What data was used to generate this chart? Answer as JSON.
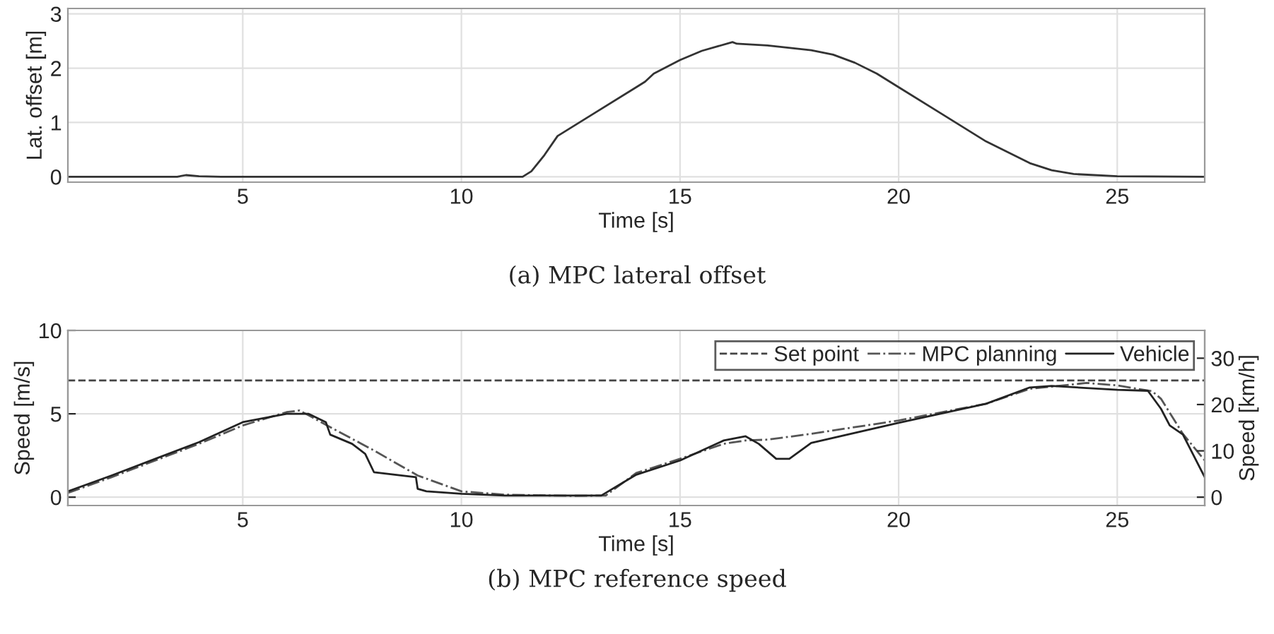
{
  "chart_data": [
    {
      "type": "line",
      "xlabel": "Time [s]",
      "ylabel": "Lat. offset [m]",
      "annotations": [
        "(a) MPC lateral offset"
      ],
      "xlim": [
        1,
        27
      ],
      "ylim": [
        -0.1,
        3.1
      ],
      "xticks": [
        5,
        10,
        15,
        20,
        25
      ],
      "yticks": [
        0,
        1,
        2,
        3
      ],
      "grid": true,
      "legend": false,
      "marker": "none",
      "series": [
        {
          "color": "#333333",
          "line_style": "solid",
          "x": [
            1,
            3.5,
            3.7,
            4.0,
            4.5,
            11.4,
            11.6,
            11.9,
            12.2,
            13,
            14,
            14.2,
            14.4,
            15,
            15.5,
            16.2,
            16.3,
            17,
            18,
            18.5,
            19,
            19.5,
            20,
            21,
            22,
            23,
            23.5,
            24,
            25,
            27
          ],
          "values": [
            0,
            0,
            0.03,
            0.01,
            0,
            0,
            0.1,
            0.4,
            0.75,
            1.15,
            1.65,
            1.75,
            1.9,
            2.15,
            2.32,
            2.48,
            2.45,
            2.42,
            2.33,
            2.25,
            2.1,
            1.9,
            1.65,
            1.15,
            0.65,
            0.25,
            0.12,
            0.05,
            0.01,
            0
          ]
        }
      ]
    },
    {
      "type": "line",
      "xlabel": "Time [s]",
      "ylabel": "Speed [m/s]",
      "y2label": "Speed [km/h]",
      "annotations": [
        "(b) MPC reference speed"
      ],
      "xlim": [
        1,
        27
      ],
      "ylim": [
        -0.5,
        10
      ],
      "y2lim": [
        -1.8,
        36
      ],
      "xticks": [
        5,
        10,
        15,
        20,
        25
      ],
      "yticks": [
        0,
        5,
        10
      ],
      "y2ticks": [
        0,
        10,
        20,
        30
      ],
      "grid": true,
      "legend": "top right",
      "marker": "none",
      "series": [
        {
          "name": "Set point",
          "color": "#444444",
          "line_style": "dashed",
          "x": [
            1,
            27
          ],
          "values": [
            7,
            7
          ]
        },
        {
          "name": "MPC planning",
          "color": "#555555",
          "line_style": "dashdot",
          "x": [
            1,
            2,
            3,
            4,
            5,
            6,
            6.3,
            7,
            8,
            9,
            10,
            11,
            12.5,
            13.3,
            14,
            15,
            16,
            16.5,
            17,
            18,
            20,
            22,
            23,
            24.3,
            25,
            25.8,
            26,
            26.5,
            27
          ],
          "values": [
            0.25,
            1.2,
            2.2,
            3.2,
            4.3,
            5.1,
            5.2,
            4.2,
            2.8,
            1.3,
            0.35,
            0.15,
            0.08,
            0.1,
            1.45,
            2.3,
            3.2,
            3.4,
            3.45,
            3.8,
            4.6,
            5.6,
            6.5,
            6.85,
            6.7,
            6.35,
            5.9,
            3.8,
            2.2
          ]
        },
        {
          "name": "Vehicle",
          "color": "#222222",
          "line_style": "solid",
          "x": [
            1,
            2,
            3,
            4,
            5,
            6,
            6.5,
            6.9,
            7.0,
            7.5,
            7.8,
            8.0,
            8.96,
            9.0,
            9.2,
            10,
            11,
            13.2,
            14,
            15,
            16,
            16.5,
            16.8,
            17.2,
            17.5,
            18,
            20,
            22,
            23,
            23.5,
            25,
            25.7,
            26,
            26.2,
            26.5,
            27
          ],
          "values": [
            0.35,
            1.3,
            2.3,
            3.3,
            4.5,
            5.0,
            5.0,
            4.5,
            3.75,
            3.2,
            2.6,
            1.5,
            1.2,
            0.5,
            0.35,
            0.2,
            0.1,
            0.1,
            1.35,
            2.2,
            3.4,
            3.65,
            3.2,
            2.3,
            2.3,
            3.25,
            4.46,
            5.6,
            6.58,
            6.67,
            6.44,
            6.38,
            5.3,
            4.3,
            3.76,
            1.2
          ]
        }
      ]
    }
  ]
}
